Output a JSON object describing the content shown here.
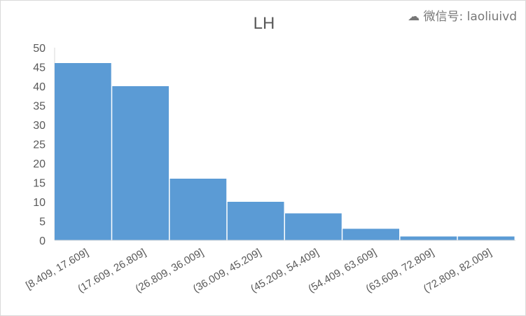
{
  "chart_data": {
    "type": "bar",
    "title": "LH",
    "categories": [
      "[8.409, 17.609]",
      "(17.609, 26.809]",
      "(26.809, 36.009]",
      "(36.009, 45.209]",
      "(45.209, 54.409]",
      "(54.409, 63.609]",
      "(63.609, 72.809]",
      "(72.809, 82.009]"
    ],
    "values": [
      46,
      40,
      16,
      10,
      7,
      3,
      1,
      1
    ],
    "ylim": [
      0,
      50
    ],
    "yticks": [
      0,
      5,
      10,
      15,
      20,
      25,
      30,
      35,
      40,
      45,
      50
    ],
    "grid": false,
    "bar_color": "#5b9bd5",
    "xlabel": "",
    "ylabel": ""
  },
  "watermark": "微信号: laoliuivd"
}
